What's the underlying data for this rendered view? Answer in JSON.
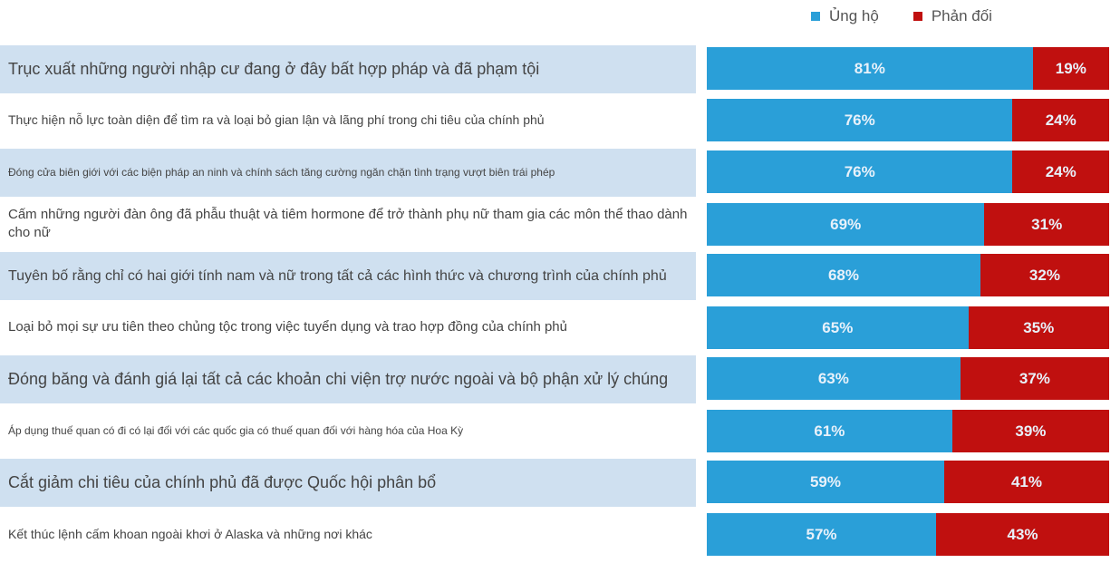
{
  "chart_data": {
    "type": "bar",
    "orientation": "horizontal",
    "stacked": true,
    "legend_placement": "top-right",
    "series": [
      {
        "name": "Ủng hộ",
        "color": "#2a9fd8",
        "values": [
          81,
          76,
          76,
          69,
          68,
          65,
          63,
          61,
          59,
          57
        ],
        "labels": [
          "81%",
          "76%",
          "76%",
          "69%",
          "68%",
          "65%",
          "63%",
          "61%",
          "59%",
          "57%"
        ]
      },
      {
        "name": "Phản đối",
        "color": "#c0100f",
        "values": [
          19,
          24,
          24,
          31,
          32,
          35,
          37,
          39,
          41,
          43
        ],
        "labels": [
          "19%",
          "24%",
          "24%",
          "31%",
          "32%",
          "35%",
          "37%",
          "39%",
          "41%",
          "43%"
        ]
      }
    ],
    "categories": [
      "Trục xuất những người nhập cư đang ở đây bất hợp pháp và đã phạm tội",
      "Thực hiện nỗ lực toàn diện để tìm ra và loại bỏ gian lận và lãng phí trong chi tiêu của chính phủ",
      "Đóng cửa biên giới với các biện pháp an ninh và chính sách tăng cường ngăn chặn tình trạng vượt biên trái phép",
      "Cấm những người đàn ông đã phẫu thuật và tiêm hormone để trở thành phụ nữ tham gia các môn thể thao dành cho nữ",
      "Tuyên bố rằng chỉ có hai giới tính nam và nữ trong tất cả các hình thức và chương trình của chính phủ",
      "Loại bỏ mọi sự ưu tiên theo chủng tộc trong việc tuyển dụng và trao hợp đồng của chính phủ",
      "Đóng băng và đánh giá lại tất cả các khoản chi viện trợ nước ngoài và bộ phận xử lý chúng",
      "Áp dụng thuế quan có đi có lại đối với các quốc gia có thuế quan đối với hàng hóa của Hoa Kỳ",
      "Cắt giảm chi tiêu của chính phủ đã được Quốc hội phân bổ",
      "Kết thúc lệnh cấm khoan ngoài khơi ở Alaska và những nơi khác"
    ],
    "label_background_color": "#cfe0f0"
  }
}
